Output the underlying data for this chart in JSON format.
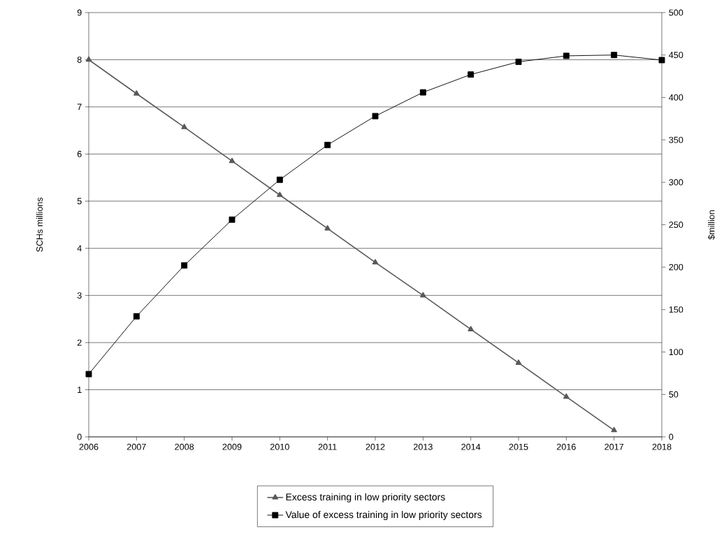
{
  "chart_data": {
    "type": "line",
    "x": [
      2006,
      2007,
      2008,
      2009,
      2010,
      2011,
      2012,
      2013,
      2014,
      2015,
      2016,
      2017,
      2018
    ],
    "series": [
      {
        "name": "Excess training in low priority sectors",
        "color": "#595959",
        "marker": "triangle",
        "axis": "y",
        "values": [
          8.0,
          7.28,
          6.57,
          5.85,
          5.13,
          4.42,
          3.7,
          3.0,
          2.28,
          1.57,
          0.85,
          0.14,
          null
        ]
      },
      {
        "name": "Value of excess training in low priority sectors",
        "color": "#000000",
        "marker": "square",
        "axis": "y2",
        "values": [
          74,
          142,
          202,
          256,
          303,
          344,
          378,
          406,
          427,
          442,
          449,
          450,
          444
        ]
      }
    ],
    "ylabel": "SCHs millions",
    "y2label": "$million",
    "xlim": [
      2006,
      2018
    ],
    "xticks": [
      2006,
      2007,
      2008,
      2009,
      2010,
      2011,
      2012,
      2013,
      2014,
      2015,
      2016,
      2017,
      2018
    ],
    "ylim": [
      0,
      9
    ],
    "yticks": [
      0,
      1,
      2,
      3,
      4,
      5,
      6,
      7,
      8,
      9
    ],
    "y2lim": [
      0,
      500
    ],
    "y2ticks": [
      0,
      50,
      100,
      150,
      200,
      250,
      300,
      350,
      400,
      450,
      500
    ],
    "grid": "y",
    "legend": "bottom",
    "line_style": "solid"
  }
}
